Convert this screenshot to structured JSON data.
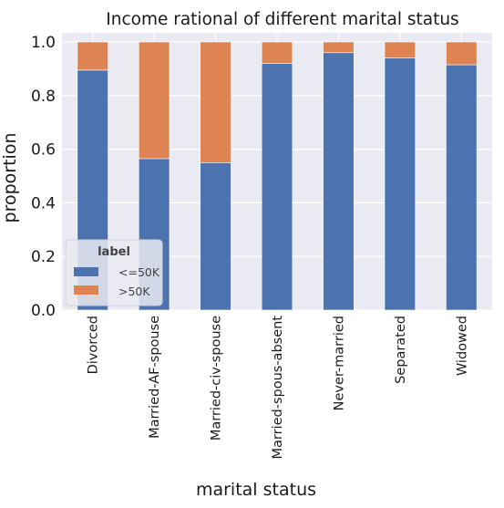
{
  "chart_data": {
    "type": "bar",
    "stacked": true,
    "title": "Income rational of different marital status",
    "xlabel": "marital status",
    "ylabel": "proportion",
    "ylim": [
      0,
      1.0
    ],
    "yticks": [
      "0.0",
      "0.2",
      "0.4",
      "0.6",
      "0.8",
      "1.0"
    ],
    "grid": true,
    "legend_placement": "lower-left",
    "legend_title": "label",
    "categories": [
      "Divorced",
      "Married-AF-spouse",
      "Married-civ-spouse",
      "Married-spous-absent",
      "Never-married",
      "Separated",
      "Widowed"
    ],
    "series": [
      {
        "name": "<=50K",
        "color": "#4c72b0",
        "values": [
          0.895,
          0.565,
          0.55,
          0.92,
          0.96,
          0.94,
          0.915
        ]
      },
      {
        "name": ">50K",
        "color": "#dd8452",
        "values": [
          0.105,
          0.435,
          0.45,
          0.08,
          0.04,
          0.06,
          0.085
        ]
      }
    ],
    "background_color": "#eaeaf2",
    "grid_color": "#ffffff"
  }
}
